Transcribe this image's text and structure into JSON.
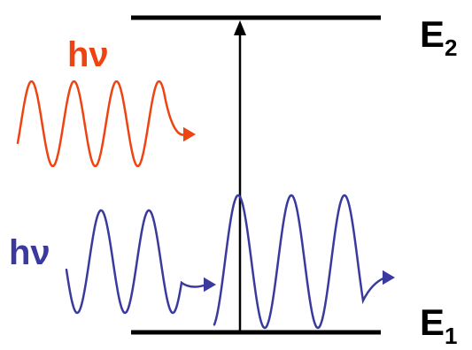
{
  "colors": {
    "level": "#000000",
    "emitted_photon": "#ee4411",
    "absorbed_photon": "#3a3a9e",
    "background": "#ffffff"
  },
  "levels": {
    "upper": {
      "symbol": "E",
      "index": "2"
    },
    "lower": {
      "symbol": "E",
      "index": "1"
    }
  },
  "photons": {
    "emitted": {
      "label": "hν"
    },
    "absorbed": {
      "label": "hν"
    }
  }
}
